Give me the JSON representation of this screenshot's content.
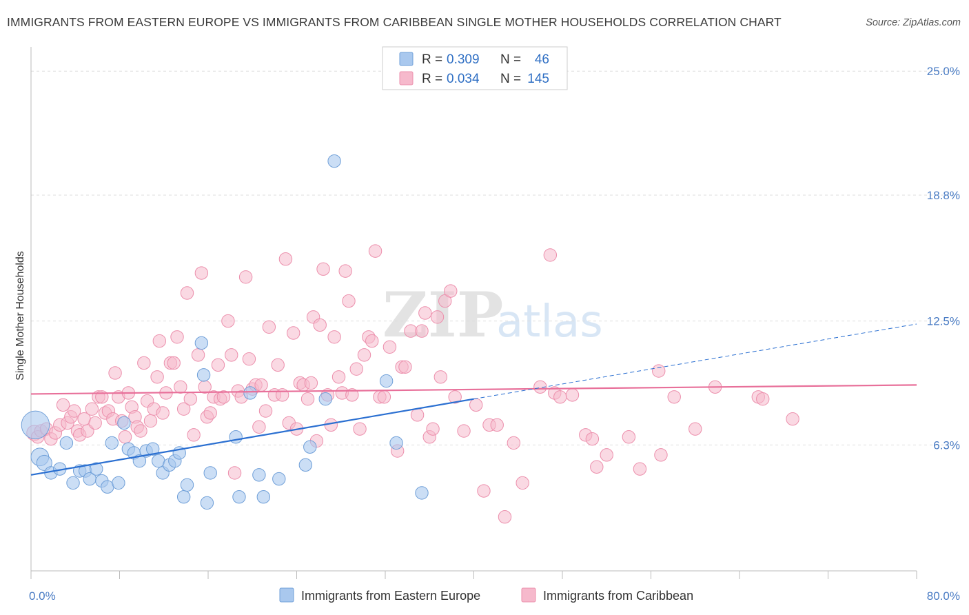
{
  "title": "IMMIGRANTS FROM EASTERN EUROPE VS IMMIGRANTS FROM CARIBBEAN SINGLE MOTHER HOUSEHOLDS CORRELATION CHART",
  "source": "Source: ZipAtlas.com",
  "watermark": {
    "zip": "ZIP",
    "atlas": "atlas"
  },
  "colors": {
    "blue_fill": "#a9c8ee",
    "blue_stroke": "#6f9fd8",
    "blue_line": "#2a6fd1",
    "pink_fill": "#f6b9cc",
    "pink_stroke": "#ec8fac",
    "pink_line": "#e8709a",
    "tick_text": "#4a7cc4",
    "grid": "#dddddd"
  },
  "legend": {
    "rows": [
      {
        "r_label": "R =",
        "r_value": "0.309",
        "n_label": "N =",
        "n_value": "46",
        "color": "blue"
      },
      {
        "r_label": "R =",
        "r_value": "0.034",
        "n_label": "N =",
        "n_value": "145",
        "color": "pink"
      }
    ]
  },
  "chart_data": {
    "type": "scatter",
    "title": "IMMIGRANTS FROM EASTERN EUROPE VS IMMIGRANTS FROM CARIBBEAN SINGLE MOTHER HOUSEHOLDS CORRELATION CHART",
    "xlabel": "",
    "ylabel": "Single Mother Households",
    "xlim": [
      0,
      80
    ],
    "ylim": [
      0,
      25.8
    ],
    "x_tick_labels": [
      "0.0%",
      "80.0%"
    ],
    "x_minor_ticks": [
      0,
      8,
      16,
      24,
      32,
      40,
      48,
      56,
      64,
      72,
      80
    ],
    "y_ticks": [
      {
        "value": 6.3,
        "label": "6.3%"
      },
      {
        "value": 12.5,
        "label": "12.5%"
      },
      {
        "value": 18.8,
        "label": "18.8%"
      },
      {
        "value": 25.0,
        "label": "25.0%"
      }
    ],
    "grid": true,
    "legend_position": "top-center",
    "series": [
      {
        "name": "Immigrants from Eastern Europe",
        "color": "blue",
        "r": 0.309,
        "n": 46,
        "trend": {
          "x0": 0,
          "y0": 4.8,
          "x1": 40,
          "y1": 8.6,
          "dashed_to_x": 80,
          "dashed_to_y": 12.35
        },
        "points": [
          [
            0.4,
            7.3,
            22
          ],
          [
            0.8,
            5.7,
            14
          ],
          [
            1.2,
            5.4,
            12
          ],
          [
            1.8,
            4.9,
            10
          ],
          [
            2.6,
            5.1,
            10
          ],
          [
            3.2,
            6.4,
            10
          ],
          [
            3.8,
            4.4,
            10
          ],
          [
            4.4,
            5.0,
            10
          ],
          [
            4.9,
            5.0,
            10
          ],
          [
            5.3,
            4.6,
            10
          ],
          [
            5.9,
            5.1,
            10
          ],
          [
            6.4,
            4.5,
            10
          ],
          [
            6.9,
            4.2,
            10
          ],
          [
            7.3,
            6.4,
            10
          ],
          [
            7.9,
            4.4,
            10
          ],
          [
            8.4,
            7.4,
            10
          ],
          [
            8.8,
            6.1,
            10
          ],
          [
            9.3,
            5.9,
            10
          ],
          [
            9.8,
            5.5,
            10
          ],
          [
            10.4,
            6.0,
            10
          ],
          [
            11.0,
            6.1,
            10
          ],
          [
            11.5,
            5.5,
            10
          ],
          [
            11.9,
            4.9,
            10
          ],
          [
            12.5,
            5.3,
            10
          ],
          [
            13.0,
            5.5,
            10
          ],
          [
            13.4,
            5.9,
            10
          ],
          [
            13.8,
            3.7,
            10
          ],
          [
            14.1,
            4.3,
            10
          ],
          [
            15.4,
            11.4,
            10
          ],
          [
            15.6,
            9.8,
            10
          ],
          [
            15.9,
            3.4,
            10
          ],
          [
            16.2,
            4.9,
            10
          ],
          [
            18.5,
            6.7,
            10
          ],
          [
            18.8,
            3.7,
            10
          ],
          [
            19.8,
            8.9,
            10
          ],
          [
            20.6,
            4.8,
            10
          ],
          [
            21.0,
            3.7,
            10
          ],
          [
            22.4,
            4.6,
            10
          ],
          [
            24.8,
            5.3,
            10
          ],
          [
            25.2,
            6.2,
            10
          ],
          [
            26.6,
            8.6,
            10
          ],
          [
            27.4,
            20.5,
            10
          ],
          [
            32.1,
            9.5,
            10
          ],
          [
            33.0,
            6.4,
            10
          ],
          [
            35.3,
            3.9,
            10
          ],
          [
            30.5,
            4.6,
            0
          ]
        ]
      },
      {
        "name": "Immigrants from Caribbean",
        "color": "pink",
        "r": 0.034,
        "n": 145,
        "trend": {
          "x0": 0,
          "y0": 8.85,
          "x1": 80,
          "y1": 9.3
        },
        "points": [
          [
            0.3,
            6.9,
            12
          ],
          [
            0.6,
            6.7,
            10
          ],
          [
            0.9,
            7.0,
            10
          ],
          [
            1.4,
            7.1,
            10
          ],
          [
            1.8,
            6.6,
            10
          ],
          [
            2.2,
            6.9,
            10
          ],
          [
            2.6,
            7.3,
            10
          ],
          [
            2.9,
            8.3,
            10
          ],
          [
            3.3,
            7.4,
            10
          ],
          [
            3.6,
            7.7,
            10
          ],
          [
            3.9,
            8.0,
            10
          ],
          [
            4.2,
            7.0,
            10
          ],
          [
            4.4,
            6.8,
            10
          ],
          [
            4.8,
            7.6,
            10
          ],
          [
            5.1,
            7.0,
            10
          ],
          [
            5.5,
            8.1,
            10
          ],
          [
            5.8,
            7.4,
            10
          ],
          [
            6.1,
            8.7,
            10
          ],
          [
            6.4,
            8.7,
            10
          ],
          [
            6.7,
            7.9,
            10
          ],
          [
            7.0,
            8.0,
            10
          ],
          [
            7.4,
            7.6,
            10
          ],
          [
            7.6,
            9.9,
            10
          ],
          [
            7.9,
            8.7,
            10
          ],
          [
            8.2,
            7.5,
            10
          ],
          [
            8.5,
            6.7,
            10
          ],
          [
            8.8,
            8.9,
            10
          ],
          [
            9.1,
            8.2,
            10
          ],
          [
            9.4,
            7.7,
            10
          ],
          [
            9.6,
            7.2,
            10
          ],
          [
            9.9,
            7.0,
            10
          ],
          [
            10.2,
            10.4,
            10
          ],
          [
            10.5,
            8.5,
            10
          ],
          [
            10.8,
            7.5,
            10
          ],
          [
            11.1,
            8.1,
            10
          ],
          [
            11.4,
            9.7,
            10
          ],
          [
            11.6,
            11.5,
            10
          ],
          [
            11.9,
            7.9,
            10
          ],
          [
            12.2,
            8.9,
            10
          ],
          [
            12.6,
            10.4,
            10
          ],
          [
            12.9,
            10.4,
            10
          ],
          [
            13.2,
            11.7,
            10
          ],
          [
            13.5,
            9.2,
            10
          ],
          [
            13.8,
            8.1,
            10
          ],
          [
            14.1,
            13.9,
            10
          ],
          [
            14.4,
            8.6,
            10
          ],
          [
            14.7,
            6.8,
            10
          ],
          [
            15.1,
            10.8,
            10
          ],
          [
            15.4,
            14.9,
            10
          ],
          [
            15.7,
            9.2,
            10
          ],
          [
            15.9,
            7.7,
            10
          ],
          [
            16.2,
            7.9,
            10
          ],
          [
            16.5,
            8.7,
            10
          ],
          [
            16.9,
            10.3,
            10
          ],
          [
            17.1,
            8.6,
            10
          ],
          [
            17.4,
            8.7,
            10
          ],
          [
            17.8,
            12.5,
            10
          ],
          [
            18.1,
            10.8,
            10
          ],
          [
            18.4,
            4.9,
            10
          ],
          [
            18.7,
            9.0,
            10
          ],
          [
            19.0,
            8.7,
            10
          ],
          [
            19.4,
            14.7,
            10
          ],
          [
            19.7,
            10.6,
            10
          ],
          [
            20.0,
            9.1,
            10
          ],
          [
            20.3,
            9.3,
            10
          ],
          [
            20.6,
            7.2,
            10
          ],
          [
            20.8,
            9.3,
            10
          ],
          [
            21.2,
            8.0,
            10
          ],
          [
            21.5,
            12.2,
            10
          ],
          [
            22.0,
            8.8,
            10
          ],
          [
            22.3,
            10.3,
            10
          ],
          [
            22.7,
            8.8,
            10
          ],
          [
            23.0,
            15.6,
            10
          ],
          [
            23.3,
            7.4,
            10
          ],
          [
            23.7,
            11.9,
            10
          ],
          [
            24.0,
            7.1,
            10
          ],
          [
            24.3,
            9.4,
            10
          ],
          [
            24.6,
            9.3,
            10
          ],
          [
            25.0,
            8.6,
            10
          ],
          [
            25.3,
            9.4,
            10
          ],
          [
            25.5,
            12.7,
            10
          ],
          [
            25.8,
            6.5,
            10
          ],
          [
            26.1,
            12.3,
            10
          ],
          [
            26.4,
            15.1,
            10
          ],
          [
            26.8,
            8.8,
            10
          ],
          [
            27.1,
            7.3,
            10
          ],
          [
            27.4,
            11.7,
            10
          ],
          [
            27.8,
            9.7,
            10
          ],
          [
            28.1,
            8.9,
            10
          ],
          [
            28.4,
            15.0,
            10
          ],
          [
            28.7,
            13.5,
            10
          ],
          [
            29.0,
            8.8,
            10
          ],
          [
            29.4,
            10.1,
            10
          ],
          [
            29.7,
            7.1,
            10
          ],
          [
            30.1,
            10.8,
            10
          ],
          [
            30.5,
            11.7,
            10
          ],
          [
            30.8,
            11.5,
            10
          ],
          [
            31.1,
            16.0,
            10
          ],
          [
            31.5,
            8.7,
            10
          ],
          [
            31.9,
            8.7,
            10
          ],
          [
            32.4,
            11.2,
            10
          ],
          [
            33.1,
            6.0,
            10
          ],
          [
            33.5,
            10.2,
            10
          ],
          [
            33.8,
            10.2,
            10
          ],
          [
            34.3,
            12.0,
            10
          ],
          [
            34.9,
            7.8,
            10
          ],
          [
            35.3,
            12.0,
            10
          ],
          [
            35.6,
            12.9,
            10
          ],
          [
            36.0,
            6.7,
            10
          ],
          [
            36.3,
            7.1,
            10
          ],
          [
            36.7,
            12.7,
            10
          ],
          [
            37.0,
            9.7,
            10
          ],
          [
            37.4,
            13.5,
            10
          ],
          [
            37.9,
            14.0,
            10
          ],
          [
            38.3,
            8.7,
            10
          ],
          [
            39.1,
            7.0,
            10
          ],
          [
            40.2,
            8.3,
            10
          ],
          [
            40.9,
            4.0,
            10
          ],
          [
            41.4,
            7.3,
            10
          ],
          [
            42.1,
            7.3,
            10
          ],
          [
            42.8,
            2.7,
            10
          ],
          [
            43.6,
            6.4,
            10
          ],
          [
            44.4,
            4.4,
            10
          ],
          [
            46.0,
            9.2,
            10
          ],
          [
            46.9,
            15.8,
            10
          ],
          [
            47.3,
            8.9,
            10
          ],
          [
            47.8,
            8.7,
            10
          ],
          [
            48.9,
            8.8,
            10
          ],
          [
            50.1,
            6.8,
            10
          ],
          [
            50.7,
            6.6,
            10
          ],
          [
            51.1,
            5.2,
            10
          ],
          [
            52.0,
            5.8,
            10
          ],
          [
            54.0,
            6.7,
            10
          ],
          [
            55.0,
            5.1,
            10
          ],
          [
            56.7,
            10.0,
            10
          ],
          [
            56.9,
            5.8,
            10
          ],
          [
            58.1,
            8.7,
            10
          ],
          [
            60.0,
            7.1,
            10
          ],
          [
            61.8,
            9.2,
            10
          ],
          [
            65.7,
            8.7,
            10
          ],
          [
            66.1,
            8.6,
            10
          ],
          [
            68.8,
            7.6,
            10
          ]
        ]
      }
    ]
  },
  "bottom_legend": [
    {
      "label": "Immigrants from Eastern Europe",
      "color": "blue"
    },
    {
      "label": "Immigrants from Caribbean",
      "color": "pink"
    }
  ]
}
